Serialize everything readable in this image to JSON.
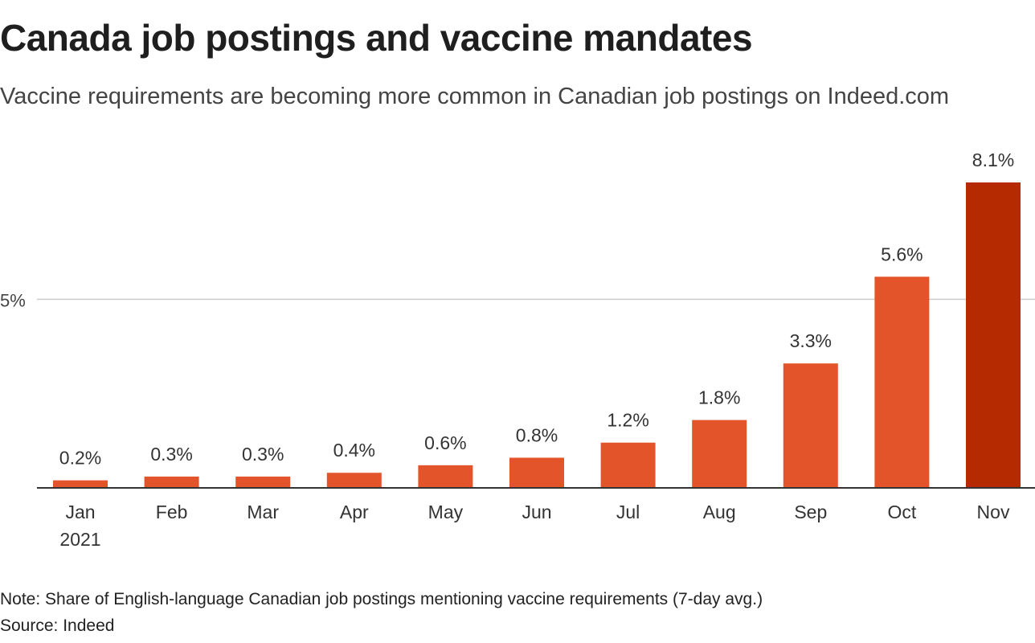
{
  "header": {
    "title": "Canada job postings and vaccine mandates",
    "subtitle": "Vaccine requirements are becoming more common in Canadian job postings on Indeed.com"
  },
  "footer": {
    "note": "Note: Share of English-language Canadian job postings mentioning vaccine requirements (7-day avg.)",
    "source": "Source: Indeed"
  },
  "chart_data": {
    "type": "bar",
    "title": "Canada job postings and vaccine mandates",
    "subtitle": "Vaccine requirements are becoming more common in Canadian job postings on Indeed.com",
    "categories": [
      "Jan",
      "Feb",
      "Mar",
      "Apr",
      "May",
      "Jun",
      "Jul",
      "Aug",
      "Sep",
      "Oct",
      "Nov"
    ],
    "category_sublabels": [
      "2021",
      "",
      "",
      "",
      "",
      "",
      "",
      "",
      "",
      "",
      ""
    ],
    "values": [
      0.2,
      0.3,
      0.3,
      0.4,
      0.6,
      0.8,
      1.2,
      1.8,
      3.3,
      5.6,
      8.1
    ],
    "data_labels": [
      "0.2%",
      "0.3%",
      "0.3%",
      "0.4%",
      "0.6%",
      "0.8%",
      "1.2%",
      "1.8%",
      "3.3%",
      "5.6%",
      "8.1%"
    ],
    "ylim": [
      0,
      8.1
    ],
    "yticks": [
      5
    ],
    "ytick_labels": [
      "5%"
    ],
    "grid": true,
    "legend": "none",
    "colors": {
      "bar": "#e4542b",
      "highlight_bar": "#b52a00",
      "gridline": "#cccccc",
      "axis": "#333333"
    },
    "highlight_index": 10
  }
}
